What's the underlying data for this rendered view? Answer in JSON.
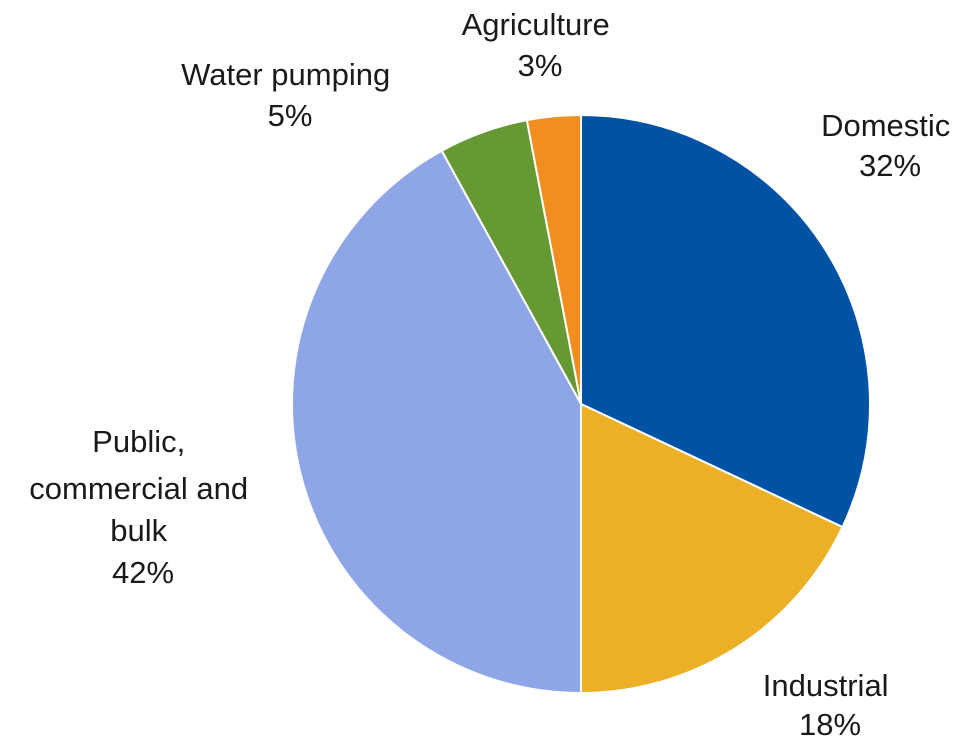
{
  "chart_data": {
    "type": "pie",
    "start": "top",
    "direction": "clockwise",
    "slices": [
      {
        "name": "Domestic",
        "value": 32,
        "value_label": "32%",
        "color": "#0052a5"
      },
      {
        "name": "Industrial",
        "value": 18,
        "value_label": "18%",
        "color": "#ebb025"
      },
      {
        "name": "Public, commercial and bulk",
        "value": 42,
        "value_label": "42%",
        "color": "#8fa6e6"
      },
      {
        "name": "Water pumping",
        "value": 5,
        "value_label": "5%",
        "color": "#669934"
      },
      {
        "name": "Agriculture",
        "value": 3,
        "value_label": "3%",
        "color": "#f28e1f"
      }
    ],
    "legend": "none",
    "labels": "outside"
  }
}
